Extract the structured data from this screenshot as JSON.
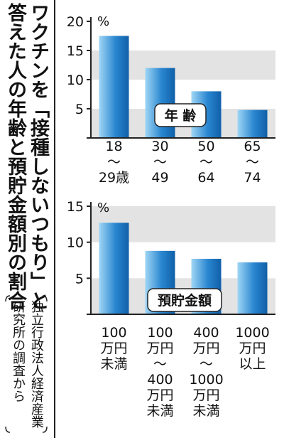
{
  "title": {
    "line1": "ワクチンを「接種しないつもり」と",
    "line2": "答えた人の年齢と預貯金額別の割合"
  },
  "source": {
    "line1": "独立行政法人経済産業",
    "line2": "研究所の調査から"
  },
  "colors": {
    "bar_light": "#9fd6f5",
    "bar_dark": "#0f5fa8",
    "band": "#e3e3e3",
    "axis": "#222222"
  },
  "chart_data": [
    {
      "type": "bar",
      "legend": "年 齢",
      "unit": "%",
      "categories": [
        [
          "18",
          "～",
          "29歳"
        ],
        [
          "30",
          "～",
          "49"
        ],
        [
          "50",
          "～",
          "64"
        ],
        [
          "65",
          "～",
          "74"
        ]
      ],
      "values": [
        17.5,
        12.0,
        8.0,
        4.8
      ],
      "yticks": [
        0,
        5,
        10,
        15,
        20
      ],
      "ylim": [
        0,
        20
      ]
    },
    {
      "type": "bar",
      "legend": "預貯金額",
      "unit": "%",
      "categories": [
        [
          "100",
          "万円",
          "未満"
        ],
        [
          "100",
          "万円",
          "～",
          "400",
          "万円",
          "未満"
        ],
        [
          "400",
          "万円",
          "～",
          "1000",
          "万円",
          "未満"
        ],
        [
          "1000",
          "万円",
          "以上"
        ]
      ],
      "values": [
        12.7,
        8.8,
        7.7,
        7.2
      ],
      "yticks": [
        0,
        5,
        10,
        15
      ],
      "ylim": [
        0,
        15
      ]
    }
  ]
}
